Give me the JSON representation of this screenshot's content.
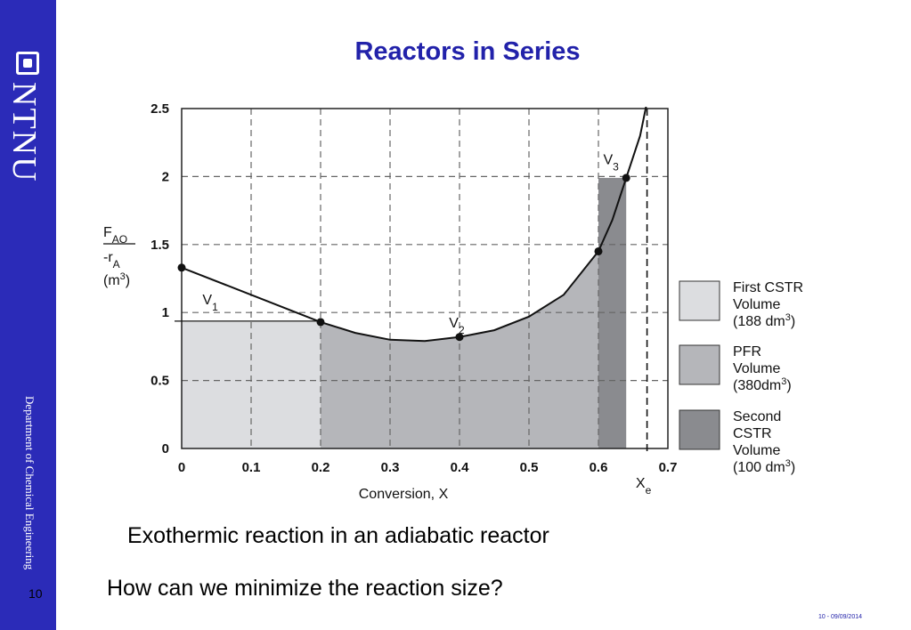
{
  "slide": {
    "title": "Reactors in Series",
    "caption_line1": "Exothermic reaction in an adiabatic reactor",
    "caption_line2": "How can we minimize the reaction size?",
    "page_number": "10",
    "footer": "10 - 09/09/2014"
  },
  "sidebar": {
    "logo_text": "NTNU",
    "department": "Department of Chemical Engineering",
    "color": "#2b2bb8"
  },
  "chart_data": {
    "type": "line",
    "xlabel": "Conversion, X",
    "ylabel": "FAO / -rA (m3)",
    "xlim": [
      0,
      0.7
    ],
    "ylim": [
      0,
      2.5
    ],
    "x_ticks": [
      "0",
      "0.1",
      "0.2",
      "0.3",
      "0.4",
      "0.5",
      "0.6",
      "0.7"
    ],
    "y_ticks": [
      "0",
      "0.5",
      "1",
      "1.5",
      "2",
      "2.5"
    ],
    "grid": true,
    "series": [
      {
        "x": [
          0,
          0.1,
          0.2,
          0.25,
          0.3,
          0.35,
          0.4,
          0.45,
          0.5,
          0.55,
          0.6,
          0.62,
          0.64,
          0.66,
          0.67
        ],
        "y": [
          1.33,
          1.13,
          0.93,
          0.85,
          0.8,
          0.79,
          0.82,
          0.87,
          0.97,
          1.13,
          1.45,
          1.68,
          1.99,
          2.3,
          2.55
        ]
      }
    ],
    "points": [
      {
        "x": 0,
        "y": 1.33
      },
      {
        "x": 0.2,
        "y": 0.93
      },
      {
        "x": 0.4,
        "y": 0.82
      },
      {
        "x": 0.6,
        "y": 1.45
      },
      {
        "x": 0.64,
        "y": 1.99
      }
    ],
    "regions": [
      {
        "label": "First CSTR Volume (188 dm3)",
        "x_start": 0,
        "x_end": 0.2,
        "height": 0.93,
        "color": "#dcdde0"
      },
      {
        "label": "PFR Volume (380dm3)",
        "x_start": 0.2,
        "x_end": 0.6,
        "color": "#b5b6ba"
      },
      {
        "label": "Second CSTR Volume (100 dm3)",
        "x_start": 0.6,
        "x_end": 0.64,
        "height": 1.99,
        "color": "#8a8b8f"
      }
    ],
    "equilibrium_x": 0.67,
    "annotations": [
      {
        "main": "V",
        "sub": "1"
      },
      {
        "main": "V",
        "sub": "2"
      },
      {
        "main": "V",
        "sub": "3"
      },
      {
        "main": "X",
        "sub": "e"
      }
    ],
    "ylabel_parts": {
      "num_main": "F",
      "num_sub": "AO",
      "den_main": "-r",
      "den_sub": "A",
      "unit": "(m",
      "unit_sup": "3",
      "unit_end": ")"
    },
    "legend": [
      {
        "lines": [
          "First CSTR",
          "Volume",
          "(188 dm"
        ],
        "sup": "3",
        "end": ")",
        "color": "#dcdde0"
      },
      {
        "lines": [
          "PFR",
          "Volume",
          "(380dm"
        ],
        "sup": "3",
        "end": ")",
        "color": "#b5b6ba"
      },
      {
        "lines": [
          "Second",
          "CSTR",
          "Volume",
          "(100 dm"
        ],
        "sup": "3",
        "end": ")",
        "color": "#8a8b8f"
      }
    ],
    "legend_placement": "right"
  }
}
